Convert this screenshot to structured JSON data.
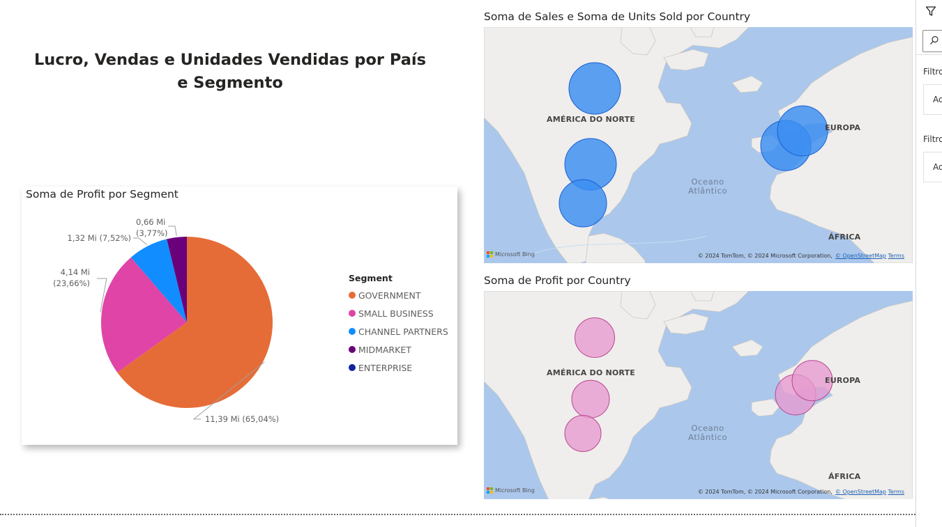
{
  "report": {
    "title": "Lucro, Vendas e Unidades Vendidas por País e Segmento"
  },
  "pie_visual": {
    "title": "Soma de Profit por Segment",
    "legend_title": "Segment"
  },
  "chart_data": {
    "type": "pie",
    "title": "Soma de Profit por Segment",
    "legend_title": "Segment",
    "legend_position": "right",
    "slices": [
      {
        "name": "GOVERNMENT",
        "value": 11.39,
        "percent": 65.04,
        "label": "11,39 Mi (65,04%)",
        "color": "#e66c37"
      },
      {
        "name": "SMALL BUSINESS",
        "value": 4.14,
        "percent": 23.66,
        "label_line1": "4,14 Mi",
        "label_line2": "(23,66%)",
        "color": "#e044a7"
      },
      {
        "name": "CHANNEL PARTNERS",
        "value": 1.32,
        "percent": 7.52,
        "label": "1,32 Mi (7,52%)",
        "color": "#118dff"
      },
      {
        "name": "MIDMARKET",
        "value": 0.66,
        "percent": 3.77,
        "label_line1": "0,66 Mi",
        "label_line2": "(3,77%)",
        "color": "#6b007b"
      },
      {
        "name": "ENTERPRISE",
        "value": 0,
        "percent": 0,
        "color": "#12239e"
      }
    ]
  },
  "map_sales": {
    "title": "Soma de Sales e Soma de Units Sold por Country",
    "bubble_color": "#3b8ef0",
    "bubble_stroke": "#1a5fd0",
    "labels": {
      "north_america": "AMÉRICA DO NORTE",
      "europe": "EUROPA",
      "ocean_line1": "Oceano",
      "ocean_line2": "Atlântico",
      "africa": "ÁFRICA"
    },
    "bing": "Microsoft Bing",
    "attribution": "© 2024 TomTom, © 2024 Microsoft Corporation,",
    "osm": "© OpenStreetMap",
    "terms": "Terms"
  },
  "map_profit": {
    "title": "Soma de Profit por Country",
    "bubble_color": "#e79ad0",
    "bubble_stroke": "#b8458f",
    "labels": {
      "north_america": "AMÉRICA DO NORTE",
      "europe": "EUROPA",
      "ocean_line1": "Oceano",
      "ocean_line2": "Atlântico",
      "africa": "ÁFRICA"
    },
    "bing": "Microsoft Bing",
    "attribution": "© 2024 TomTom, © 2024 Microsoft Corporation,",
    "osm": "© OpenStreetMap",
    "terms": "Terms"
  },
  "filters": {
    "label_1": "Filtros",
    "field_1": "Ad",
    "label_2": "Filtros",
    "field_2": "Ad"
  },
  "icons": {
    "filter": "filter-icon",
    "search": "search-icon",
    "bing": "microsoft-logo-icon"
  }
}
